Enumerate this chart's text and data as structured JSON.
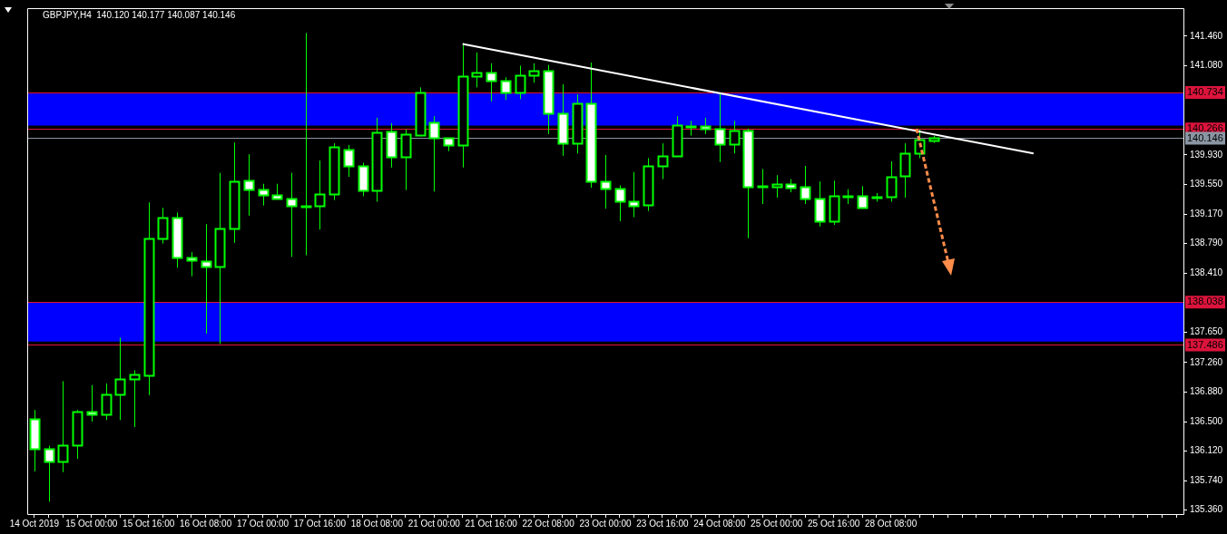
{
  "chart_data": {
    "type": "candlestick",
    "title": "GBPJPY,H4  140.120 140.177 140.087 140.146",
    "categories": [
      "14 Oct 2019",
      null,
      null,
      null,
      "15 Oct 00:00",
      null,
      null,
      null,
      "15 Oct 16:00",
      null,
      null,
      null,
      "16 Oct 08:00",
      null,
      null,
      null,
      "17 Oct 00:00",
      null,
      null,
      null,
      "17 Oct 16:00",
      null,
      null,
      null,
      "18 Oct 08:00",
      null,
      null,
      null,
      "21 Oct 00:00",
      null,
      null,
      null,
      "21 Oct 16:00",
      null,
      null,
      null,
      "22 Oct 08:00",
      null,
      null,
      null,
      "23 Oct 00:00",
      null,
      null,
      null,
      "23 Oct 16:00",
      null,
      null,
      null,
      "24 Oct 08:00",
      null,
      null,
      null,
      "25 Oct 00:00",
      null,
      null,
      null,
      "25 Oct 16:00",
      null,
      null,
      null,
      "28 Oct 08:00",
      null,
      null,
      null,
      null,
      null,
      null,
      null,
      null,
      null,
      null,
      null,
      null,
      null,
      null,
      null,
      null,
      null,
      null,
      null,
      null
    ],
    "series": [
      {
        "type": "candlestick",
        "color": "#00ff00",
        "colors": [
          "#ffffff",
          "#ffffff",
          "#000000",
          "#000000",
          "#ffffff",
          "#000000",
          "#000000",
          "#000000",
          "#000000",
          "#000000",
          "#ffffff",
          "#ffffff",
          "#ffffff",
          "#000000",
          "#000000",
          "#ffffff",
          "#ffffff",
          "#ffffff",
          "#ffffff",
          "#000000",
          "#000000",
          "#000000",
          "#ffffff",
          "#ffffff",
          "#000000",
          "#ffffff",
          "#000000",
          "#000000",
          "#ffffff",
          "#ffffff",
          "#000000",
          "#000000",
          "#ffffff",
          "#ffffff",
          "#000000",
          "#000000",
          "#ffffff",
          "#ffffff",
          "#000000",
          "#ffffff",
          "#ffffff",
          "#ffffff",
          "#ffffff",
          "#000000",
          "#000000",
          "#000000",
          "#000000",
          "#ffffff",
          "#ffffff",
          "#000000",
          "#ffffff",
          "#000000",
          "#000000",
          "#ffffff",
          "#ffffff",
          "#ffffff",
          "#000000",
          "#000000",
          "#ffffff",
          "#000000",
          "#000000",
          "#000000",
          "#000000",
          "#000000",
          null,
          null,
          null,
          null,
          null,
          null,
          null,
          null,
          null,
          null,
          null,
          null,
          null,
          null,
          null,
          null,
          null
        ],
        "ohlc": [
          [
            136.54,
            136.65,
            135.86,
            136.15
          ],
          [
            136.15,
            136.19,
            135.47,
            135.99
          ],
          [
            135.99,
            137.02,
            135.85,
            136.2
          ],
          [
            136.2,
            136.65,
            136.02,
            136.63
          ],
          [
            136.63,
            136.97,
            136.5,
            136.59
          ],
          [
            136.59,
            136.99,
            136.52,
            136.85
          ],
          [
            136.85,
            137.58,
            136.52,
            137.05
          ],
          [
            137.05,
            137.16,
            136.43,
            137.11
          ],
          [
            137.1,
            139.32,
            136.84,
            138.86
          ],
          [
            138.86,
            139.25,
            138.79,
            139.13
          ],
          [
            139.13,
            139.19,
            138.48,
            138.61
          ],
          [
            138.61,
            138.68,
            138.37,
            138.58
          ],
          [
            138.57,
            139.04,
            137.63,
            138.5
          ],
          [
            138.49,
            139.7,
            137.5,
            138.98
          ],
          [
            138.98,
            140.09,
            138.8,
            139.59
          ],
          [
            139.6,
            139.94,
            139.15,
            139.49
          ],
          [
            139.49,
            139.56,
            139.28,
            139.42
          ],
          [
            139.42,
            139.56,
            139.36,
            139.37
          ],
          [
            139.37,
            139.7,
            138.62,
            139.28
          ],
          [
            139.28,
            141.5,
            138.64,
            139.28
          ],
          [
            139.28,
            139.86,
            138.97,
            139.43
          ],
          [
            139.43,
            140.08,
            139.35,
            140.03
          ],
          [
            140.0,
            140.06,
            139.65,
            139.79
          ],
          [
            139.79,
            139.83,
            139.4,
            139.47
          ],
          [
            139.47,
            140.41,
            139.33,
            140.22
          ],
          [
            140.23,
            140.34,
            139.77,
            139.91
          ],
          [
            139.91,
            140.26,
            139.48,
            140.2
          ],
          [
            140.19,
            140.8,
            140.17,
            140.73
          ],
          [
            140.35,
            140.43,
            139.46,
            140.15
          ],
          [
            140.15,
            140.15,
            139.98,
            140.06
          ],
          [
            140.06,
            141.37,
            139.77,
            140.95
          ],
          [
            140.94,
            141.25,
            140.8,
            140.99
          ],
          [
            140.99,
            141.11,
            140.62,
            140.89
          ],
          [
            140.89,
            140.93,
            140.64,
            140.73
          ],
          [
            140.73,
            141.08,
            140.65,
            140.96
          ],
          [
            140.96,
            141.11,
            140.86,
            141.02
          ],
          [
            141.02,
            141.09,
            140.2,
            140.47
          ],
          [
            140.47,
            140.84,
            139.92,
            140.08
          ],
          [
            140.08,
            140.71,
            139.95,
            140.6
          ],
          [
            140.6,
            141.12,
            139.51,
            139.59
          ],
          [
            139.59,
            139.93,
            139.24,
            139.5
          ],
          [
            139.5,
            139.54,
            139.08,
            139.33
          ],
          [
            139.33,
            139.71,
            139.13,
            139.28
          ],
          [
            139.29,
            139.89,
            139.21,
            139.79
          ],
          [
            139.79,
            140.08,
            139.62,
            139.92
          ],
          [
            139.92,
            140.43,
            139.91,
            140.31
          ],
          [
            140.3,
            140.37,
            140.18,
            140.3
          ],
          [
            140.3,
            140.41,
            140.2,
            140.27
          ],
          [
            140.27,
            140.73,
            139.84,
            140.07
          ],
          [
            140.07,
            140.37,
            139.95,
            140.24
          ],
          [
            140.24,
            140.27,
            138.86,
            139.52
          ],
          [
            139.53,
            139.75,
            139.3,
            139.53
          ],
          [
            139.52,
            139.67,
            139.38,
            139.56
          ],
          [
            139.56,
            139.62,
            139.45,
            139.51
          ],
          [
            139.52,
            139.79,
            139.3,
            139.37
          ],
          [
            139.37,
            139.59,
            139.01,
            139.08
          ],
          [
            139.08,
            139.6,
            139.03,
            139.41
          ],
          [
            139.4,
            139.49,
            139.3,
            139.4
          ],
          [
            139.4,
            139.53,
            139.24,
            139.25
          ],
          [
            139.39,
            139.44,
            139.33,
            139.39
          ],
          [
            139.39,
            139.85,
            139.33,
            139.65
          ],
          [
            139.66,
            140.08,
            139.38,
            139.95
          ],
          [
            139.95,
            140.26,
            139.89,
            140.13
          ],
          [
            140.12,
            140.177,
            140.087,
            140.146
          ],
          null,
          null,
          null,
          null,
          null,
          null,
          null,
          null,
          null,
          null,
          null,
          null,
          null,
          null,
          null,
          null,
          null
        ]
      },
      {
        "type": "line",
        "color": "#ffffff",
        "values": [
          null,
          null,
          null,
          null,
          null,
          null,
          null,
          null,
          null,
          null,
          null,
          null,
          null,
          null,
          null,
          null,
          null,
          null,
          null,
          null,
          null,
          null,
          null,
          null,
          null,
          null,
          null,
          null,
          null,
          null,
          141.36,
          null,
          null,
          null,
          null,
          null,
          null,
          null,
          null,
          null,
          null,
          null,
          null,
          null,
          null,
          null,
          null,
          null,
          null,
          null,
          null,
          null,
          null,
          null,
          null,
          null,
          null,
          null,
          null,
          null,
          null,
          null,
          null,
          null,
          null,
          null,
          null,
          null,
          null,
          null,
          139.95,
          null,
          null,
          null,
          null,
          null,
          null,
          null,
          null,
          null,
          null
        ]
      }
    ],
    "ylim": [
      135.31,
      141.82
    ],
    "yticks": [
      {
        "value": 141.46,
        "label": "141.460"
      },
      {
        "value": 141.08,
        "label": "141.080"
      },
      {
        "value": 139.93,
        "label": "139.930"
      },
      {
        "value": 139.55,
        "label": "139.550"
      },
      {
        "value": 139.17,
        "label": "139.170"
      },
      {
        "value": 138.79,
        "label": "138.790"
      },
      {
        "value": 138.41,
        "label": "138.410"
      },
      {
        "value": 137.65,
        "label": "137.650"
      },
      {
        "value": 137.26,
        "label": "137.260"
      },
      {
        "value": 136.88,
        "label": "136.880"
      },
      {
        "value": 136.5,
        "label": "136.500"
      },
      {
        "value": 136.12,
        "label": "136.120"
      },
      {
        "value": 135.74,
        "label": "135.740"
      },
      {
        "value": 135.36,
        "label": "135.360"
      }
    ],
    "ref_lines": [
      {
        "axis": "y",
        "value": 140.734,
        "label": "140.734",
        "color": "#dc143c"
      },
      {
        "axis": "y",
        "value": 140.266,
        "label": "140.266",
        "color": "#dc143c"
      },
      {
        "axis": "y",
        "value": 140.146,
        "label": "140.146",
        "color": "#8a96a3"
      },
      {
        "axis": "y",
        "value": 138.038,
        "label": "138.038",
        "color": "#dc143c"
      },
      {
        "axis": "y",
        "value": 137.486,
        "label": "137.486",
        "color": "#dc143c"
      }
    ],
    "bands": [
      {
        "axis": "y",
        "from": 140.31,
        "to": 140.72,
        "color": "#0000ff"
      },
      {
        "axis": "y",
        "from": 137.53,
        "to": 138.03,
        "color": "#0000ff"
      }
    ]
  }
}
